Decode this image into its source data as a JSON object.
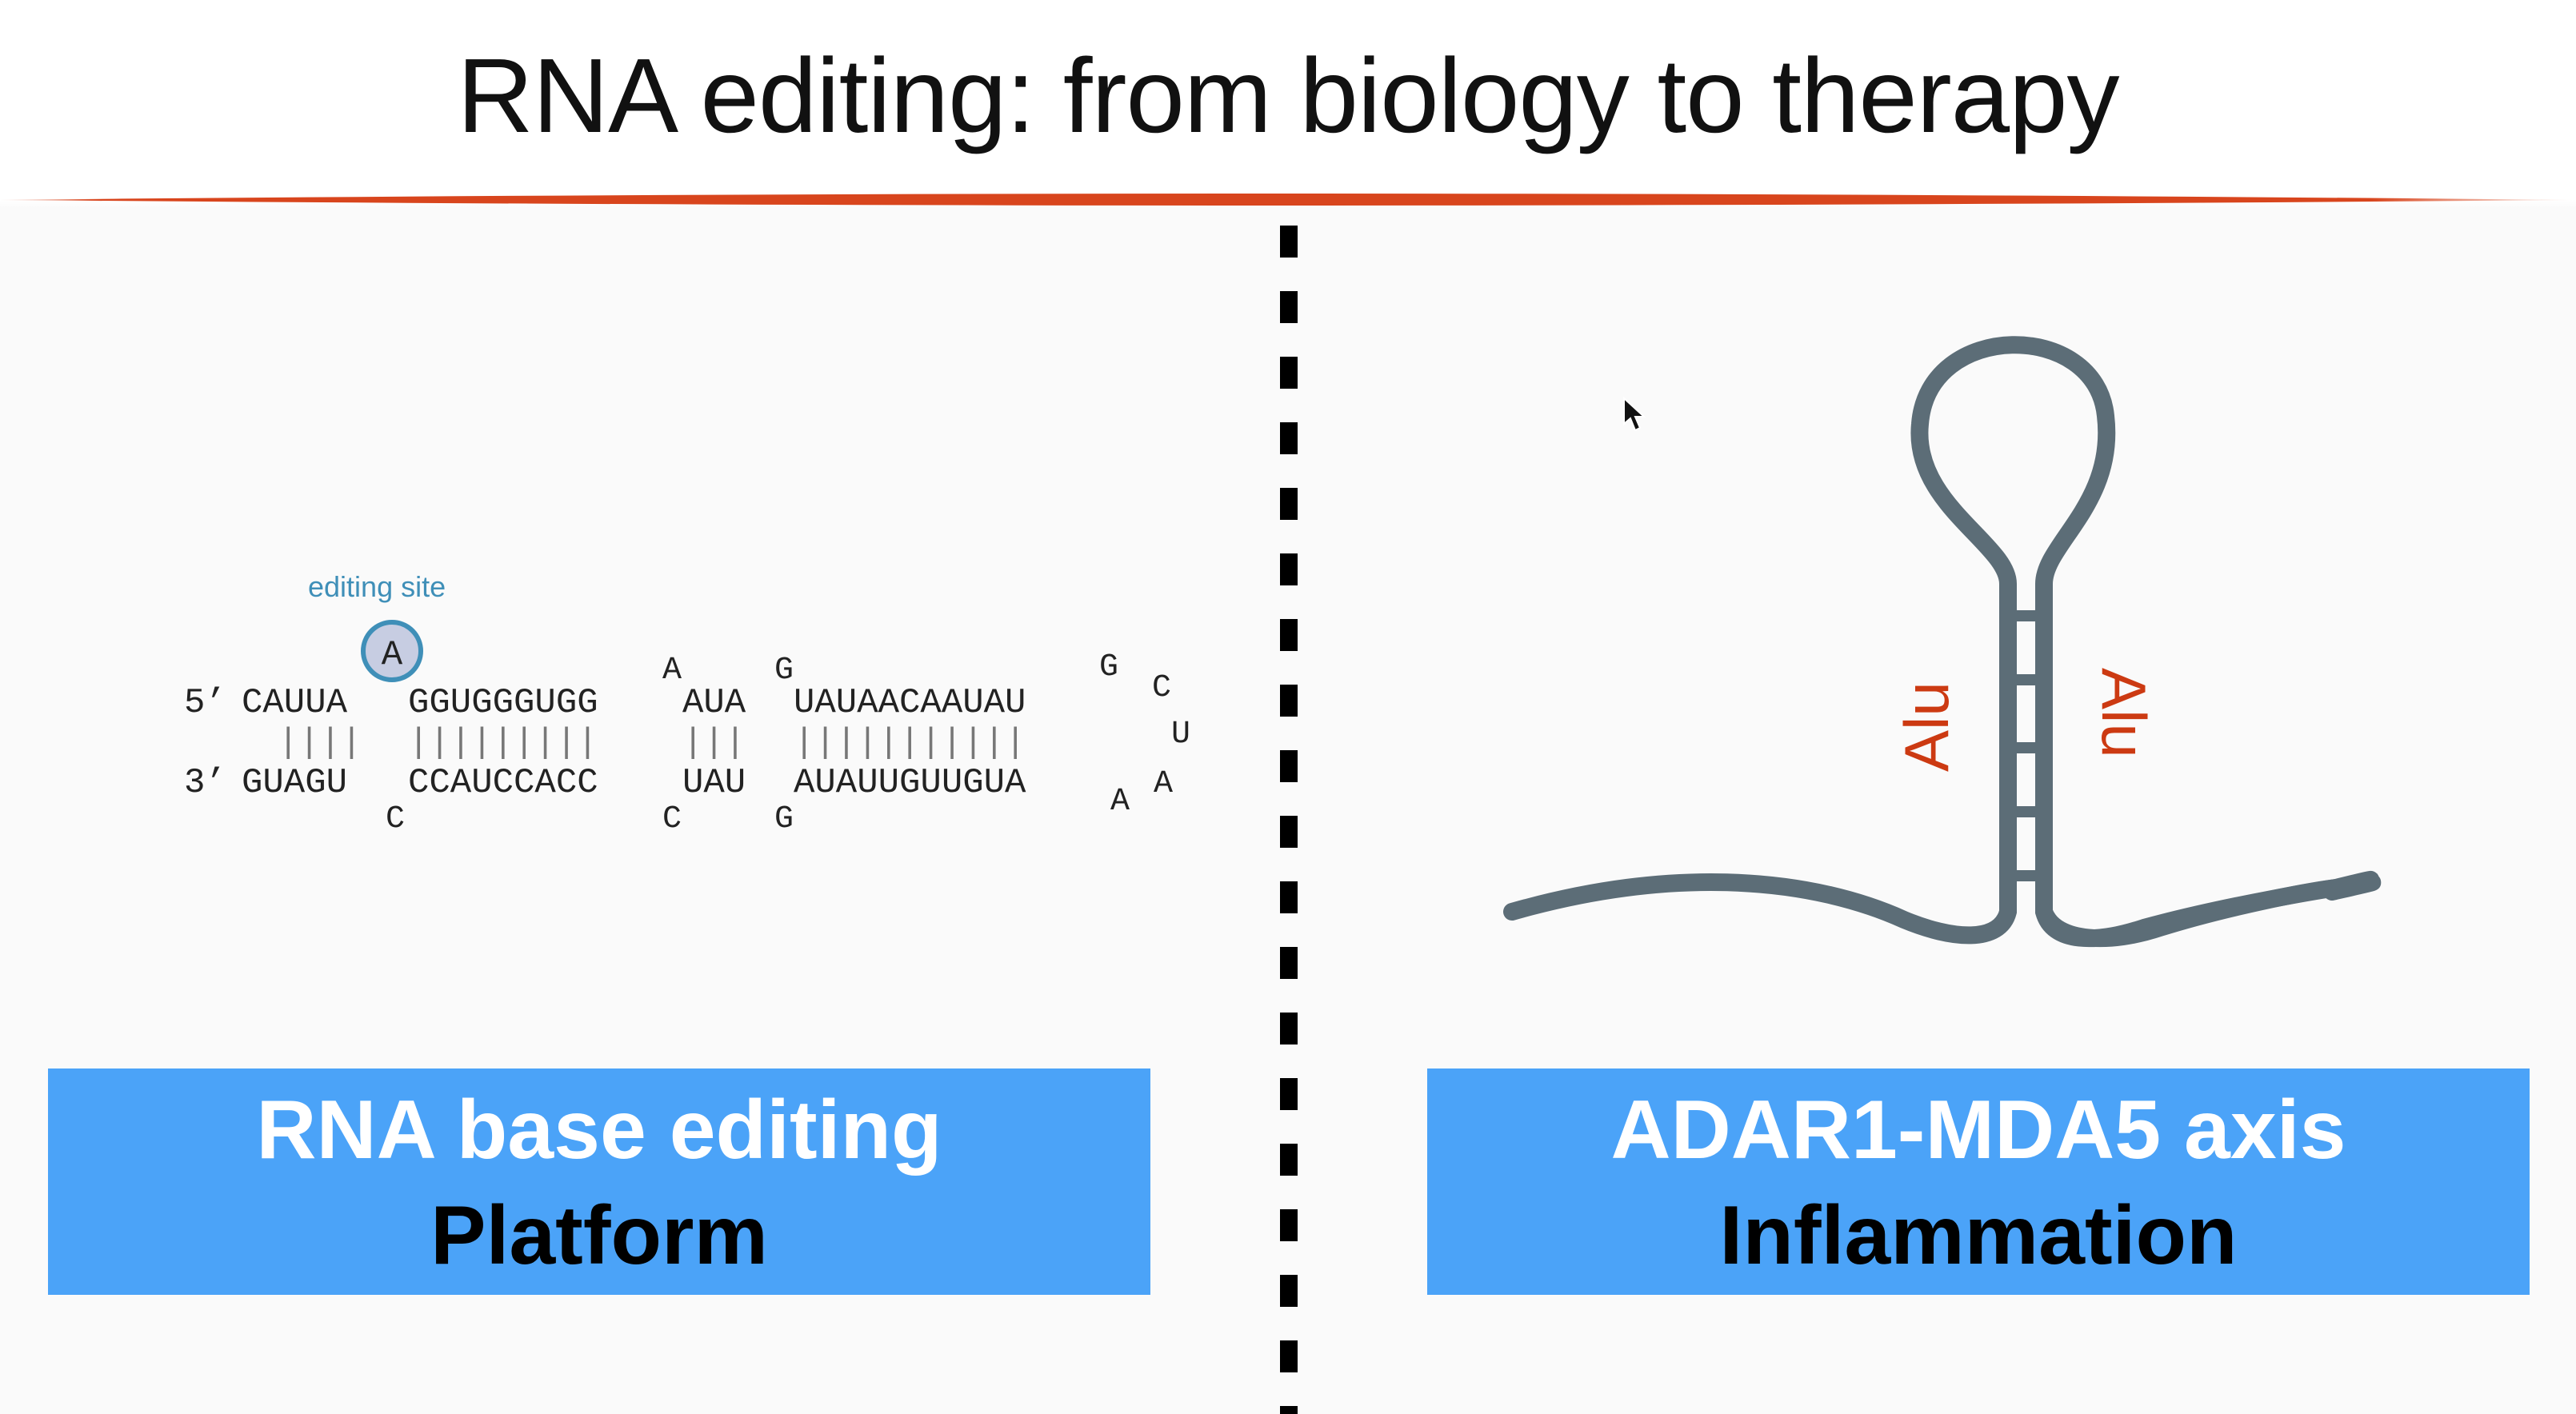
{
  "title": "RNA editing: from biology to therapy",
  "colors": {
    "rule": "#d8451d",
    "box": "#4ba3f8",
    "box_title": "#ffffff",
    "box_subtitle": "#000000",
    "alu": "#cc3a12",
    "hairpin": "#5c6d77",
    "edit_site": "#3f8fb8"
  },
  "left_panel": {
    "editing_site_label": "editing site",
    "edited_base": "A",
    "top_prefix": "5’",
    "top_segments": [
      "CAUUA",
      "GGUGGGUGG",
      "AUA",
      "UAUAACAAUAU"
    ],
    "bottom_prefix": "3’",
    "bottom_segments": [
      "GUAGU",
      "CCAUCCACC",
      "UAU",
      "AUAUUGUUGUA"
    ],
    "pairing_segments": [
      "||||",
      "|||||||||",
      "|||",
      "|||||||||||"
    ],
    "top_bulges": [
      "A",
      "G",
      "G",
      "C"
    ],
    "loop_bases": [
      "U",
      "A",
      "A"
    ],
    "bottom_bulges": [
      "C",
      "C",
      "G"
    ],
    "box": {
      "title": "RNA base editing",
      "subtitle": "Platform"
    }
  },
  "right_panel": {
    "alu_left": "Alu",
    "alu_right": "Alu",
    "box": {
      "title": "ADAR1-MDA5 axis",
      "subtitle": "Inflammation"
    }
  },
  "icons": [
    "mouse-cursor-icon"
  ]
}
